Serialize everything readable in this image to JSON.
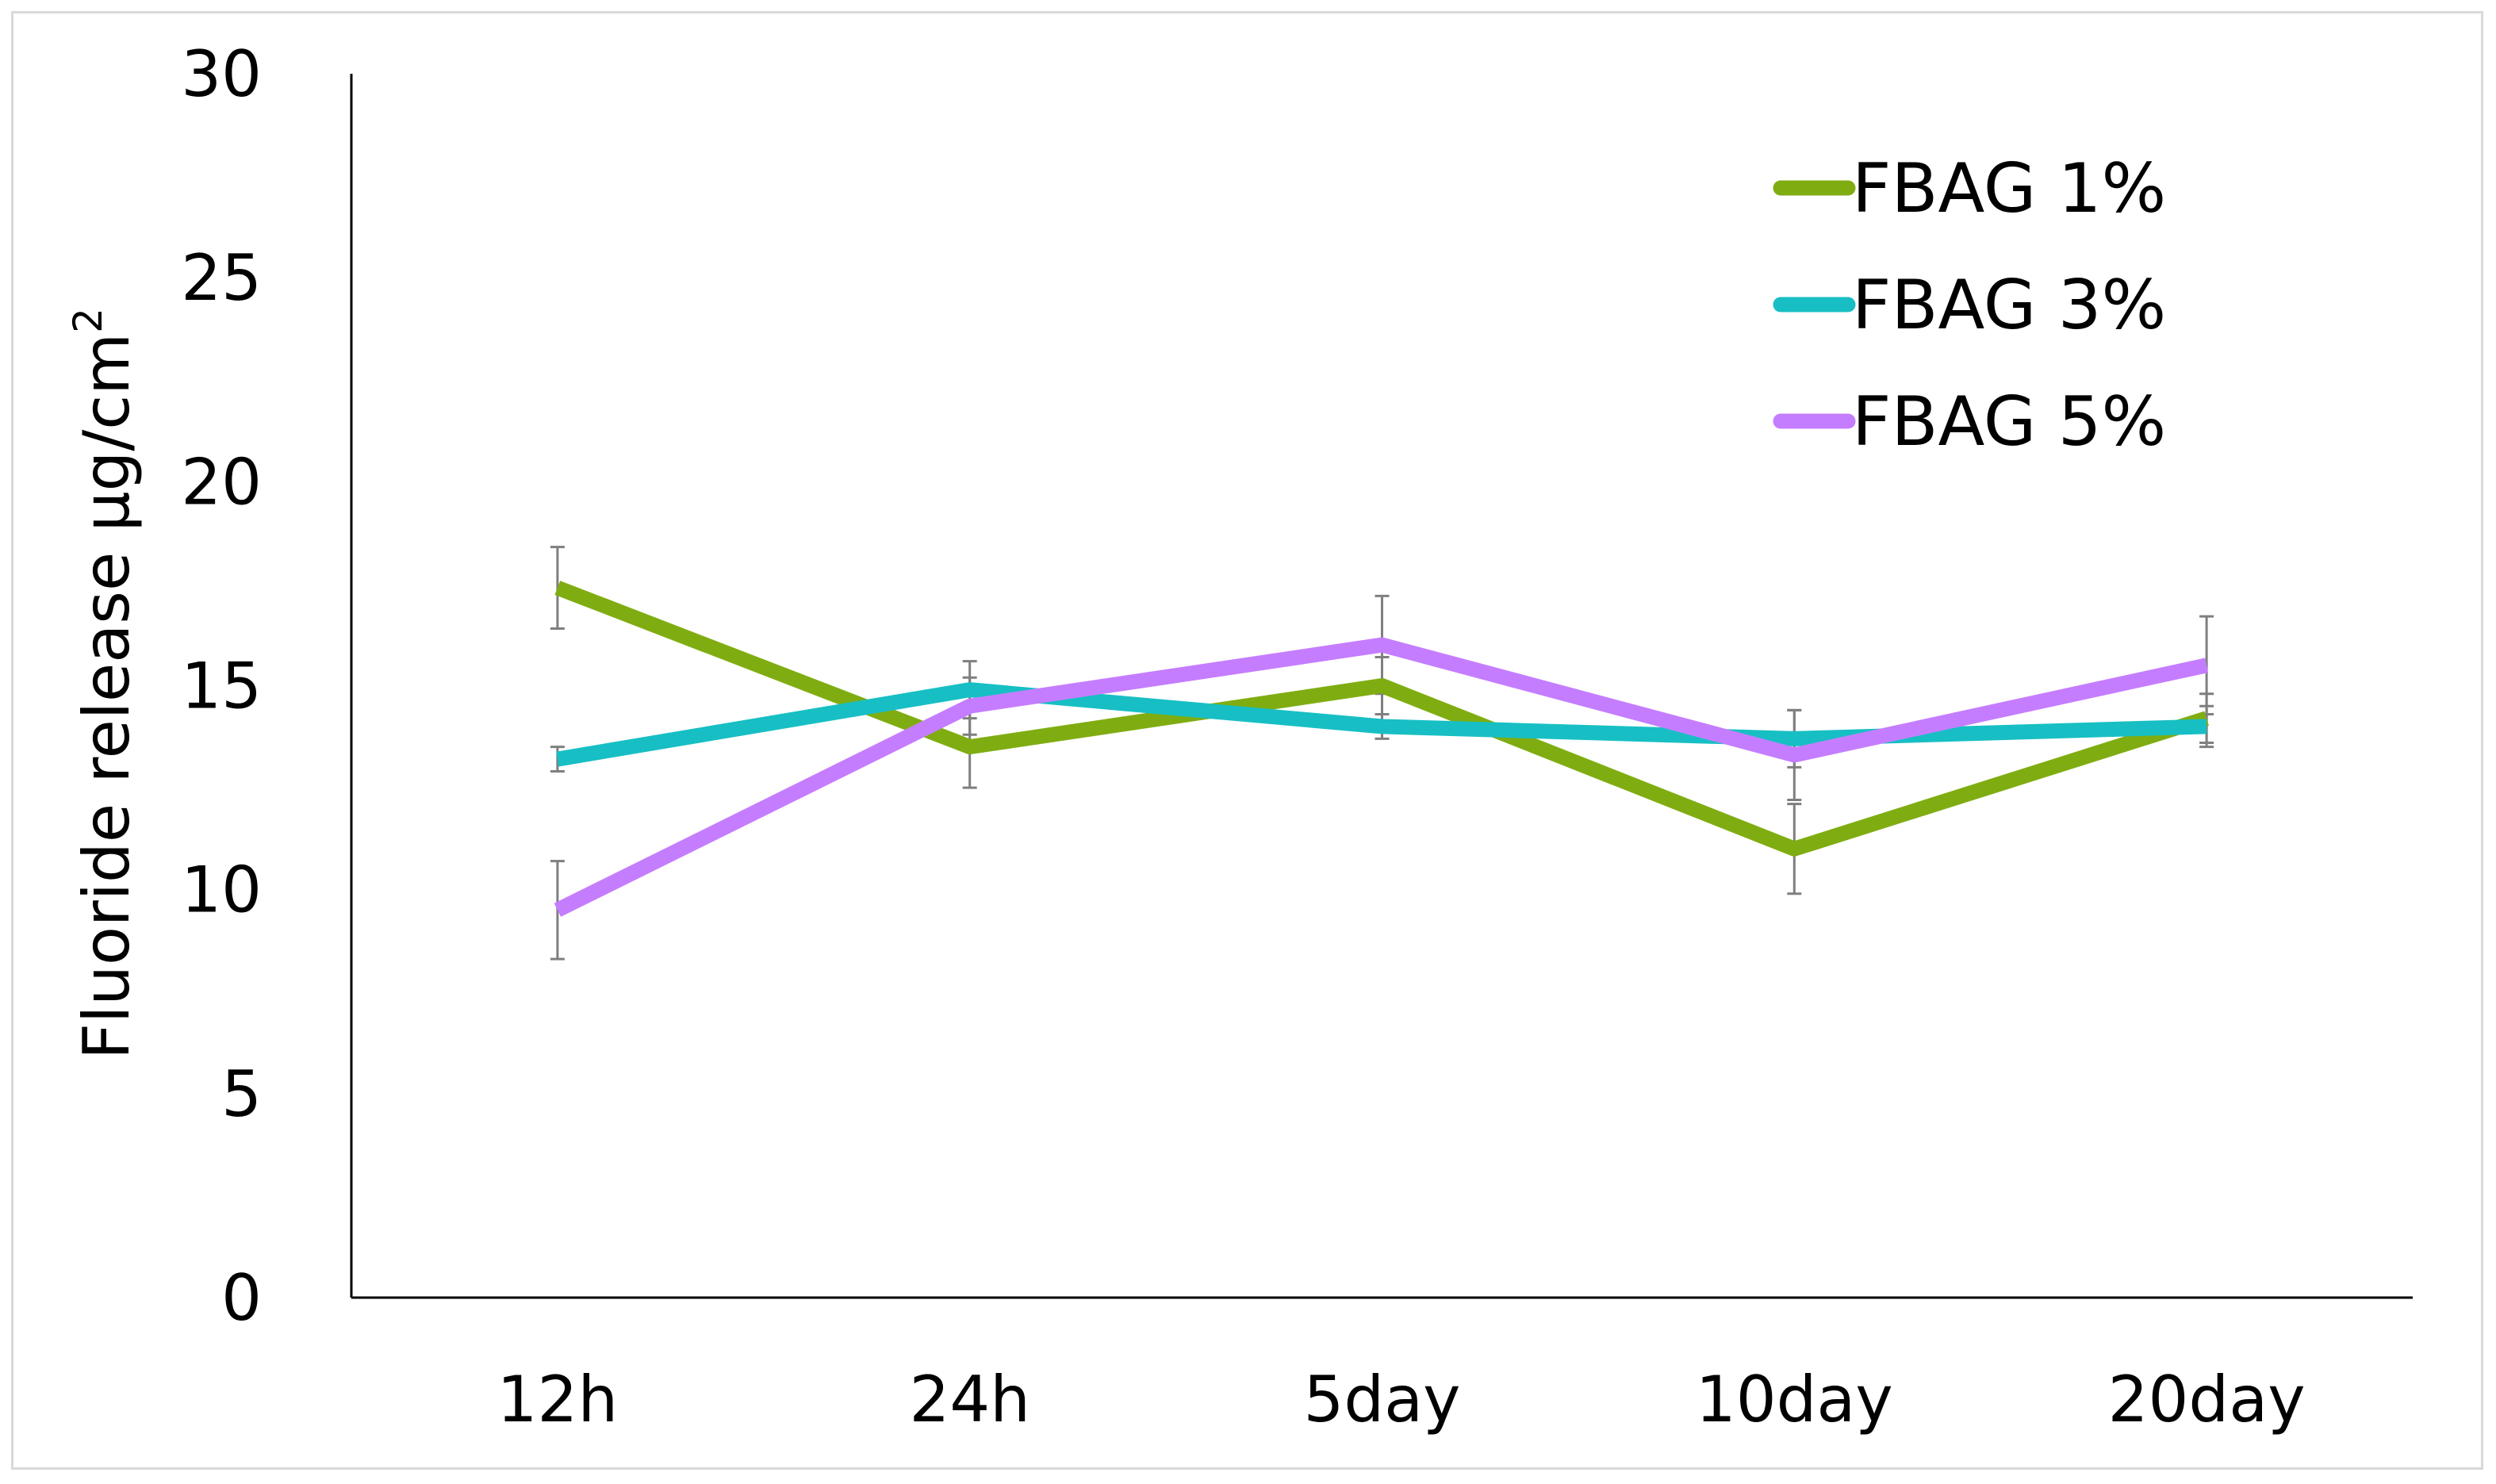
{
  "chart_data": {
    "type": "line",
    "title": "",
    "xlabel": "",
    "ylabel": "Fluoride release µg/cm",
    "ylabel_superscript": "2",
    "categories": [
      "12h",
      "24h",
      "5day",
      "10day",
      "20day"
    ],
    "ylim": [
      0,
      30
    ],
    "yticks": [
      0,
      5,
      10,
      15,
      20,
      25,
      30
    ],
    "grid": false,
    "legend_position": "top-right",
    "series": [
      {
        "name": "FBAG 1%",
        "color": "#7fad11",
        "values": [
          17.4,
          13.5,
          15.0,
          11.0,
          14.2
        ],
        "errors": [
          1.0,
          1.0,
          0.7,
          1.1,
          0.6
        ]
      },
      {
        "name": "FBAG 3%",
        "color": "#17bfc4",
        "values": [
          13.2,
          14.9,
          14.0,
          13.7,
          14.0
        ],
        "errors": [
          0.3,
          0.7,
          0.3,
          0.7,
          0.5
        ]
      },
      {
        "name": "FBAG 5%",
        "color": "#c57dff",
        "values": [
          9.5,
          14.5,
          16.0,
          13.3,
          15.5
        ],
        "errors": [
          1.2,
          0.7,
          1.2,
          1.1,
          1.2
        ]
      }
    ]
  }
}
